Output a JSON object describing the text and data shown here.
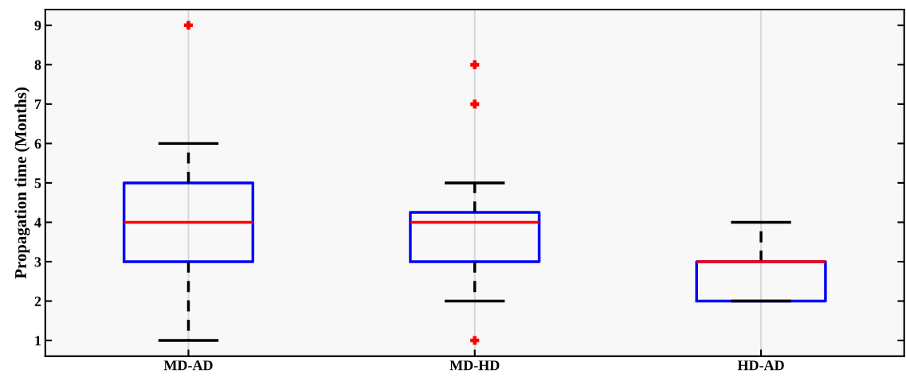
{
  "chart_data": {
    "type": "box",
    "ylabel": "Propagation time (Months)",
    "categories": [
      "MD-AD",
      "MD-HD",
      "HD-AD"
    ],
    "boxes": [
      {
        "low": 1,
        "q1": 3,
        "median": 4,
        "q3": 5,
        "high": 6,
        "outliers": [
          9
        ]
      },
      {
        "low": 2,
        "q1": 3,
        "median": 4,
        "q3": 4.25,
        "high": 5,
        "outliers": [
          7,
          8,
          1
        ]
      },
      {
        "low": 2,
        "q1": 2,
        "median": 3,
        "q3": 3,
        "high": 4
      }
    ],
    "color": "#0000ff",
    "ylim": [
      0.6,
      9.4
    ],
    "yticks": [
      1,
      2,
      3,
      4,
      5,
      6,
      7,
      8,
      9
    ],
    "grid": "x"
  }
}
